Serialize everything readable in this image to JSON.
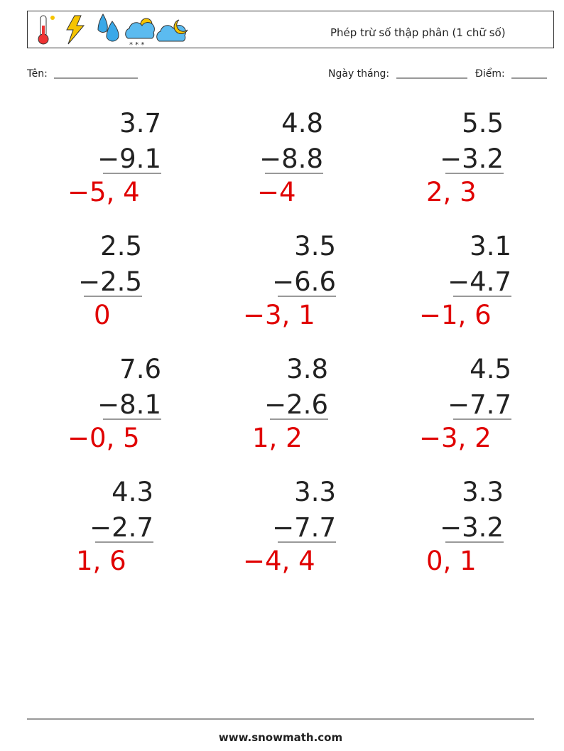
{
  "header": {
    "title": "Phép trừ số thập phân (1 chữ số)"
  },
  "fields": {
    "name": "Tên:",
    "date": "Ngày tháng:",
    "score": "Điểm:"
  },
  "problems": [
    {
      "top": "3.7",
      "bottom": "−9.1",
      "answer": "−5, 4"
    },
    {
      "top": "4.8",
      "bottom": "−8.8",
      "answer": "−4"
    },
    {
      "top": "5.5",
      "bottom": "−3.2",
      "answer": "2, 3"
    },
    {
      "top": "2.5",
      "bottom": "−2.5",
      "answer": "0"
    },
    {
      "top": "3.5",
      "bottom": "−6.6",
      "answer": "−3, 1"
    },
    {
      "top": "3.1",
      "bottom": "−4.7",
      "answer": "−1, 6"
    },
    {
      "top": "7.6",
      "bottom": "−8.1",
      "answer": "−0, 5"
    },
    {
      "top": "3.8",
      "bottom": "−2.6",
      "answer": "1, 2"
    },
    {
      "top": "4.5",
      "bottom": "−7.7",
      "answer": "−3, 2"
    },
    {
      "top": "4.3",
      "bottom": "−2.7",
      "answer": "1, 6"
    },
    {
      "top": "3.3",
      "bottom": "−7.7",
      "answer": "−4, 4"
    },
    {
      "top": "3.3",
      "bottom": "−3.2",
      "answer": "0, 1"
    }
  ],
  "footer": {
    "site": "www.snowmath.com"
  }
}
